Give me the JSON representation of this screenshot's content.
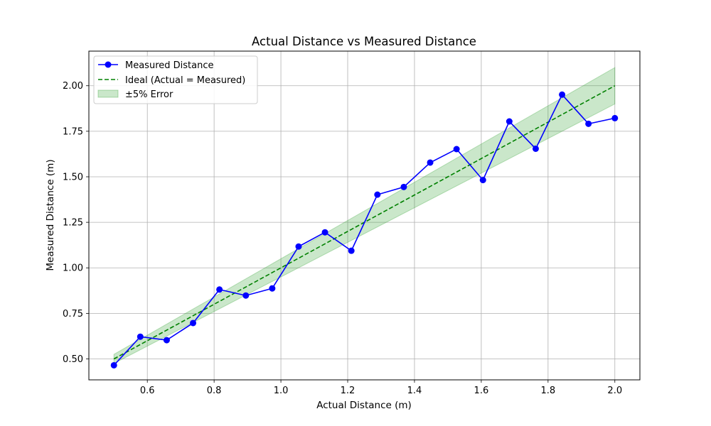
{
  "chart_data": {
    "type": "line",
    "title": "Actual Distance vs Measured Distance",
    "xlabel": "Actual Distance (m)",
    "ylabel": "Measured Distance (m)",
    "xlim": [
      0.425,
      2.075
    ],
    "ylim": [
      0.385,
      2.19
    ],
    "xticks": [
      0.6,
      0.8,
      1.0,
      1.2,
      1.4,
      1.6,
      1.8,
      2.0
    ],
    "xtick_labels": [
      "0.6",
      "0.8",
      "1.0",
      "1.2",
      "1.4",
      "1.6",
      "1.8",
      "2.0"
    ],
    "yticks": [
      0.5,
      0.75,
      1.0,
      1.25,
      1.5,
      1.75,
      2.0
    ],
    "ytick_labels": [
      "0.50",
      "0.75",
      "1.00",
      "1.25",
      "1.50",
      "1.75",
      "2.00"
    ],
    "grid": true,
    "legend_position": "top-left",
    "series": [
      {
        "name": "Measured Distance",
        "kind": "line-markers",
        "color": "#0000ff",
        "x": [
          0.5,
          0.579,
          0.658,
          0.737,
          0.816,
          0.895,
          0.974,
          1.053,
          1.132,
          1.211,
          1.289,
          1.368,
          1.447,
          1.526,
          1.605,
          1.684,
          1.763,
          1.842,
          1.921,
          2.0
        ],
        "y": [
          0.465,
          0.622,
          0.603,
          0.697,
          0.881,
          0.848,
          0.887,
          1.117,
          1.195,
          1.094,
          1.402,
          1.444,
          1.578,
          1.652,
          1.482,
          1.804,
          1.654,
          1.951,
          1.791,
          1.822
        ]
      },
      {
        "name": "Ideal (Actual = Measured)",
        "kind": "dashed-line",
        "color": "#008000",
        "x": [
          0.5,
          2.0
        ],
        "y": [
          0.5,
          2.0
        ]
      },
      {
        "name": "±5% Error",
        "kind": "band",
        "color": "#2ca02c",
        "x": [
          0.5,
          2.0
        ],
        "lower": [
          0.475,
          1.9
        ],
        "upper": [
          0.525,
          2.1
        ]
      }
    ]
  }
}
